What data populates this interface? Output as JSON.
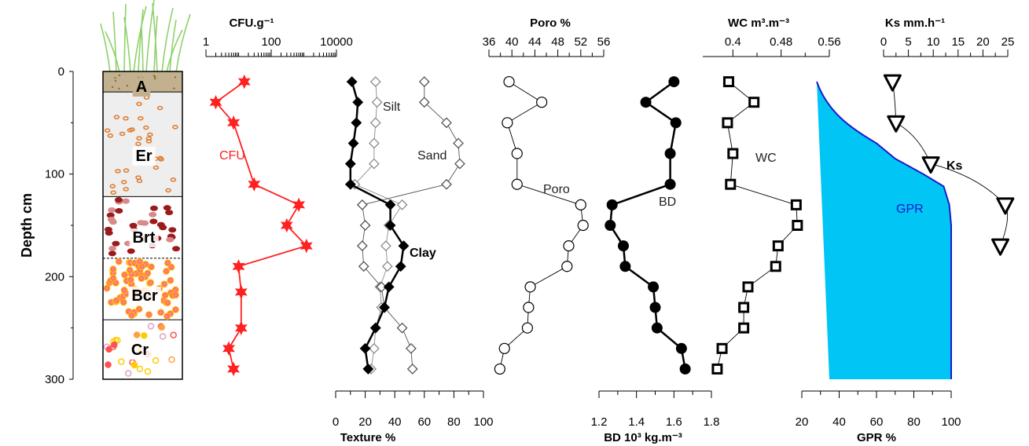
{
  "chart_data": {
    "type": "scatter",
    "depth_axis": {
      "label": "Depth cm",
      "ticks": [
        0,
        100,
        200,
        300
      ],
      "minor_ticks": [
        50,
        150,
        250
      ],
      "range": [
        0,
        300
      ],
      "reversed": true
    },
    "profile": {
      "horizons": [
        {
          "name": "A",
          "top": 0,
          "bottom": 20
        },
        {
          "name": "Er",
          "top": 20,
          "bottom": 122
        },
        {
          "name": "Brt",
          "top": 122,
          "bottom": 182
        },
        {
          "name": "Bcr",
          "top": 182,
          "bottom": 242
        },
        {
          "name": "Cr",
          "top": 242,
          "bottom": 300
        }
      ]
    },
    "panels": [
      {
        "id": "cfu",
        "title": "CFU.g⁻¹",
        "axis_position": "top",
        "scale": "log",
        "range": [
          1,
          10000
        ],
        "tick_values": [
          1,
          100,
          10000
        ],
        "tick_labels": [
          "1",
          "100",
          "10000"
        ],
        "series": [
          {
            "name": "CFU",
            "color": "#ff2020",
            "marker": "star",
            "line": "solid",
            "points": [
              [
                15,
                10
              ],
              [
                2,
                30
              ],
              [
                7,
                50
              ],
              [
                30,
                110
              ],
              [
                700,
                130
              ],
              [
                300,
                150
              ],
              [
                1200,
                170
              ],
              [
                10,
                190
              ],
              [
                12,
                215
              ],
              [
                12,
                250
              ],
              [
                5,
                270
              ],
              [
                7,
                290
              ]
            ]
          }
        ]
      },
      {
        "id": "texture",
        "title": "Texture %",
        "axis_position": "bottom",
        "scale": "linear",
        "range": [
          0,
          100
        ],
        "tick_values": [
          0,
          20,
          40,
          60,
          80,
          100
        ],
        "tick_labels": [
          "0",
          "20",
          "40",
          "60",
          "80",
          "100"
        ],
        "series": [
          {
            "name": "Silt",
            "color": "#8c8c8c",
            "marker": "diamond-open",
            "line": "thin",
            "points": [
              [
                27,
                10
              ],
              [
                28,
                30
              ],
              [
                27,
                50
              ],
              [
                26,
                70
              ],
              [
                26,
                90
              ],
              [
                13,
                110
              ],
              [
                45,
                130
              ],
              [
                36,
                150
              ],
              [
                34,
                170
              ],
              [
                35,
                190
              ],
              [
                30,
                210
              ],
              [
                31,
                230
              ],
              [
                27,
                250
              ],
              [
                26,
                270
              ],
              [
                24,
                290
              ]
            ]
          },
          {
            "name": "Sand",
            "color": "#555555",
            "marker": "diamond-open",
            "line": "thin",
            "points": [
              [
                60,
                10
              ],
              [
                60,
                30
              ],
              [
                75,
                50
              ],
              [
                83,
                70
              ],
              [
                84,
                90
              ],
              [
                75,
                110
              ],
              [
                18,
                130
              ],
              [
                20,
                150
              ],
              [
                18,
                170
              ],
              [
                19,
                190
              ],
              [
                31,
                210
              ],
              [
                33,
                230
              ],
              [
                45,
                250
              ],
              [
                51,
                270
              ],
              [
                52,
                290
              ]
            ]
          },
          {
            "name": "Clay",
            "color": "#000000",
            "marker": "diamond-filled",
            "line": "thick",
            "points": [
              [
                11,
                10
              ],
              [
                15,
                30
              ],
              [
                14,
                50
              ],
              [
                12,
                70
              ],
              [
                10,
                90
              ],
              [
                10,
                110
              ],
              [
                37,
                130
              ],
              [
                37,
                150
              ],
              [
                46,
                170
              ],
              [
                44,
                190
              ],
              [
                36,
                210
              ],
              [
                33,
                230
              ],
              [
                27,
                250
              ],
              [
                20,
                270
              ],
              [
                22,
                290
              ]
            ]
          }
        ]
      },
      {
        "id": "poro",
        "title": "Poro %",
        "axis_position": "top",
        "scale": "linear",
        "range": [
          36,
          56
        ],
        "tick_values": [
          36,
          40,
          44,
          48,
          52,
          56
        ],
        "tick_labels": [
          "36",
          "40",
          "44",
          "48",
          "52",
          "56"
        ],
        "series": [
          {
            "name": "Poro",
            "color": "#000000",
            "marker": "circle-open",
            "line": "thin",
            "points": [
              [
                39.5,
                10
              ],
              [
                45.2,
                30
              ],
              [
                39.2,
                50
              ],
              [
                40.9,
                80
              ],
              [
                40.9,
                110
              ],
              [
                52.0,
                130
              ],
              [
                52.4,
                150
              ],
              [
                49.9,
                170
              ],
              [
                49.6,
                190
              ],
              [
                43.2,
                210
              ],
              [
                42.9,
                230
              ],
              [
                42.7,
                250
              ],
              [
                38.7,
                270
              ],
              [
                37.9,
                290
              ]
            ]
          }
        ]
      },
      {
        "id": "bd",
        "title": "BD 10³ kg.m⁻³",
        "axis_position": "bottom",
        "scale": "linear",
        "range": [
          1.2,
          1.8
        ],
        "tick_values": [
          1.2,
          1.4,
          1.6,
          1.8
        ],
        "tick_labels": [
          "1.2",
          "1.4",
          "1.6",
          "1.8"
        ],
        "series": [
          {
            "name": "BD",
            "color": "#000000",
            "marker": "circle-filled",
            "line": "thick",
            "points": [
              [
                1.6,
                10
              ],
              [
                1.45,
                30
              ],
              [
                1.61,
                50
              ],
              [
                1.58,
                80
              ],
              [
                1.58,
                110
              ],
              [
                1.27,
                130
              ],
              [
                1.26,
                150
              ],
              [
                1.33,
                170
              ],
              [
                1.34,
                190
              ],
              [
                1.49,
                210
              ],
              [
                1.5,
                230
              ],
              [
                1.51,
                250
              ],
              [
                1.64,
                270
              ],
              [
                1.66,
                290
              ]
            ]
          }
        ]
      },
      {
        "id": "wc",
        "title": "WC m³.m⁻³",
        "axis_position": "top",
        "scale": "linear",
        "range": [
          0.35,
          0.56
        ],
        "tick_values": [
          0.4,
          0.48,
          0.56
        ],
        "tick_labels": [
          "0.4",
          "0.48",
          "0.56"
        ],
        "series": [
          {
            "name": "WC",
            "color": "#000000",
            "marker": "square-open",
            "line": "thin",
            "points": [
              [
                0.393,
                10
              ],
              [
                0.435,
                30
              ],
              [
                0.391,
                50
              ],
              [
                0.4,
                80
              ],
              [
                0.396,
                110
              ],
              [
                0.505,
                130
              ],
              [
                0.507,
                150
              ],
              [
                0.475,
                170
              ],
              [
                0.471,
                190
              ],
              [
                0.425,
                210
              ],
              [
                0.418,
                230
              ],
              [
                0.418,
                250
              ],
              [
                0.382,
                270
              ],
              [
                0.374,
                290
              ]
            ]
          }
        ]
      },
      {
        "id": "gpr",
        "title": "GPR %",
        "axis_position": "bottom",
        "scale": "linear",
        "range": [
          20,
          100
        ],
        "tick_values": [
          20,
          40,
          60,
          80,
          100
        ],
        "tick_labels": [
          "20",
          "40",
          "60",
          "80",
          "100"
        ],
        "series": [
          {
            "name": "GPR",
            "color": "#00c5f5",
            "line_color": "#1a1acc",
            "marker": "area",
            "line": "area",
            "points": [
              [
                28,
                10
              ],
              [
                34,
                40
              ],
              [
                46,
                55
              ],
              [
                60,
                70
              ],
              [
                70,
                85
              ],
              [
                85,
                100
              ],
              [
                96,
                112
              ],
              [
                99,
                130
              ],
              [
                100,
                150
              ],
              [
                100,
                200
              ],
              [
                100,
                300
              ]
            ]
          }
        ]
      },
      {
        "id": "ks",
        "title": "Ks mm.h⁻¹",
        "axis_position": "top",
        "scale": "linear",
        "range": [
          0,
          25
        ],
        "tick_values": [
          0,
          5,
          10,
          15,
          20,
          25
        ],
        "tick_labels": [
          "0",
          "5",
          "10",
          "15",
          "20",
          "25"
        ],
        "series": [
          {
            "name": "Ks",
            "color": "#000000",
            "marker": "triangle-down",
            "line": "thin",
            "points": [
              [
                1.8,
                10
              ],
              [
                2.5,
                50
              ],
              [
                9.5,
                90
              ],
              [
                24.5,
                130
              ],
              [
                23.5,
                170
              ]
            ]
          }
        ]
      }
    ]
  }
}
